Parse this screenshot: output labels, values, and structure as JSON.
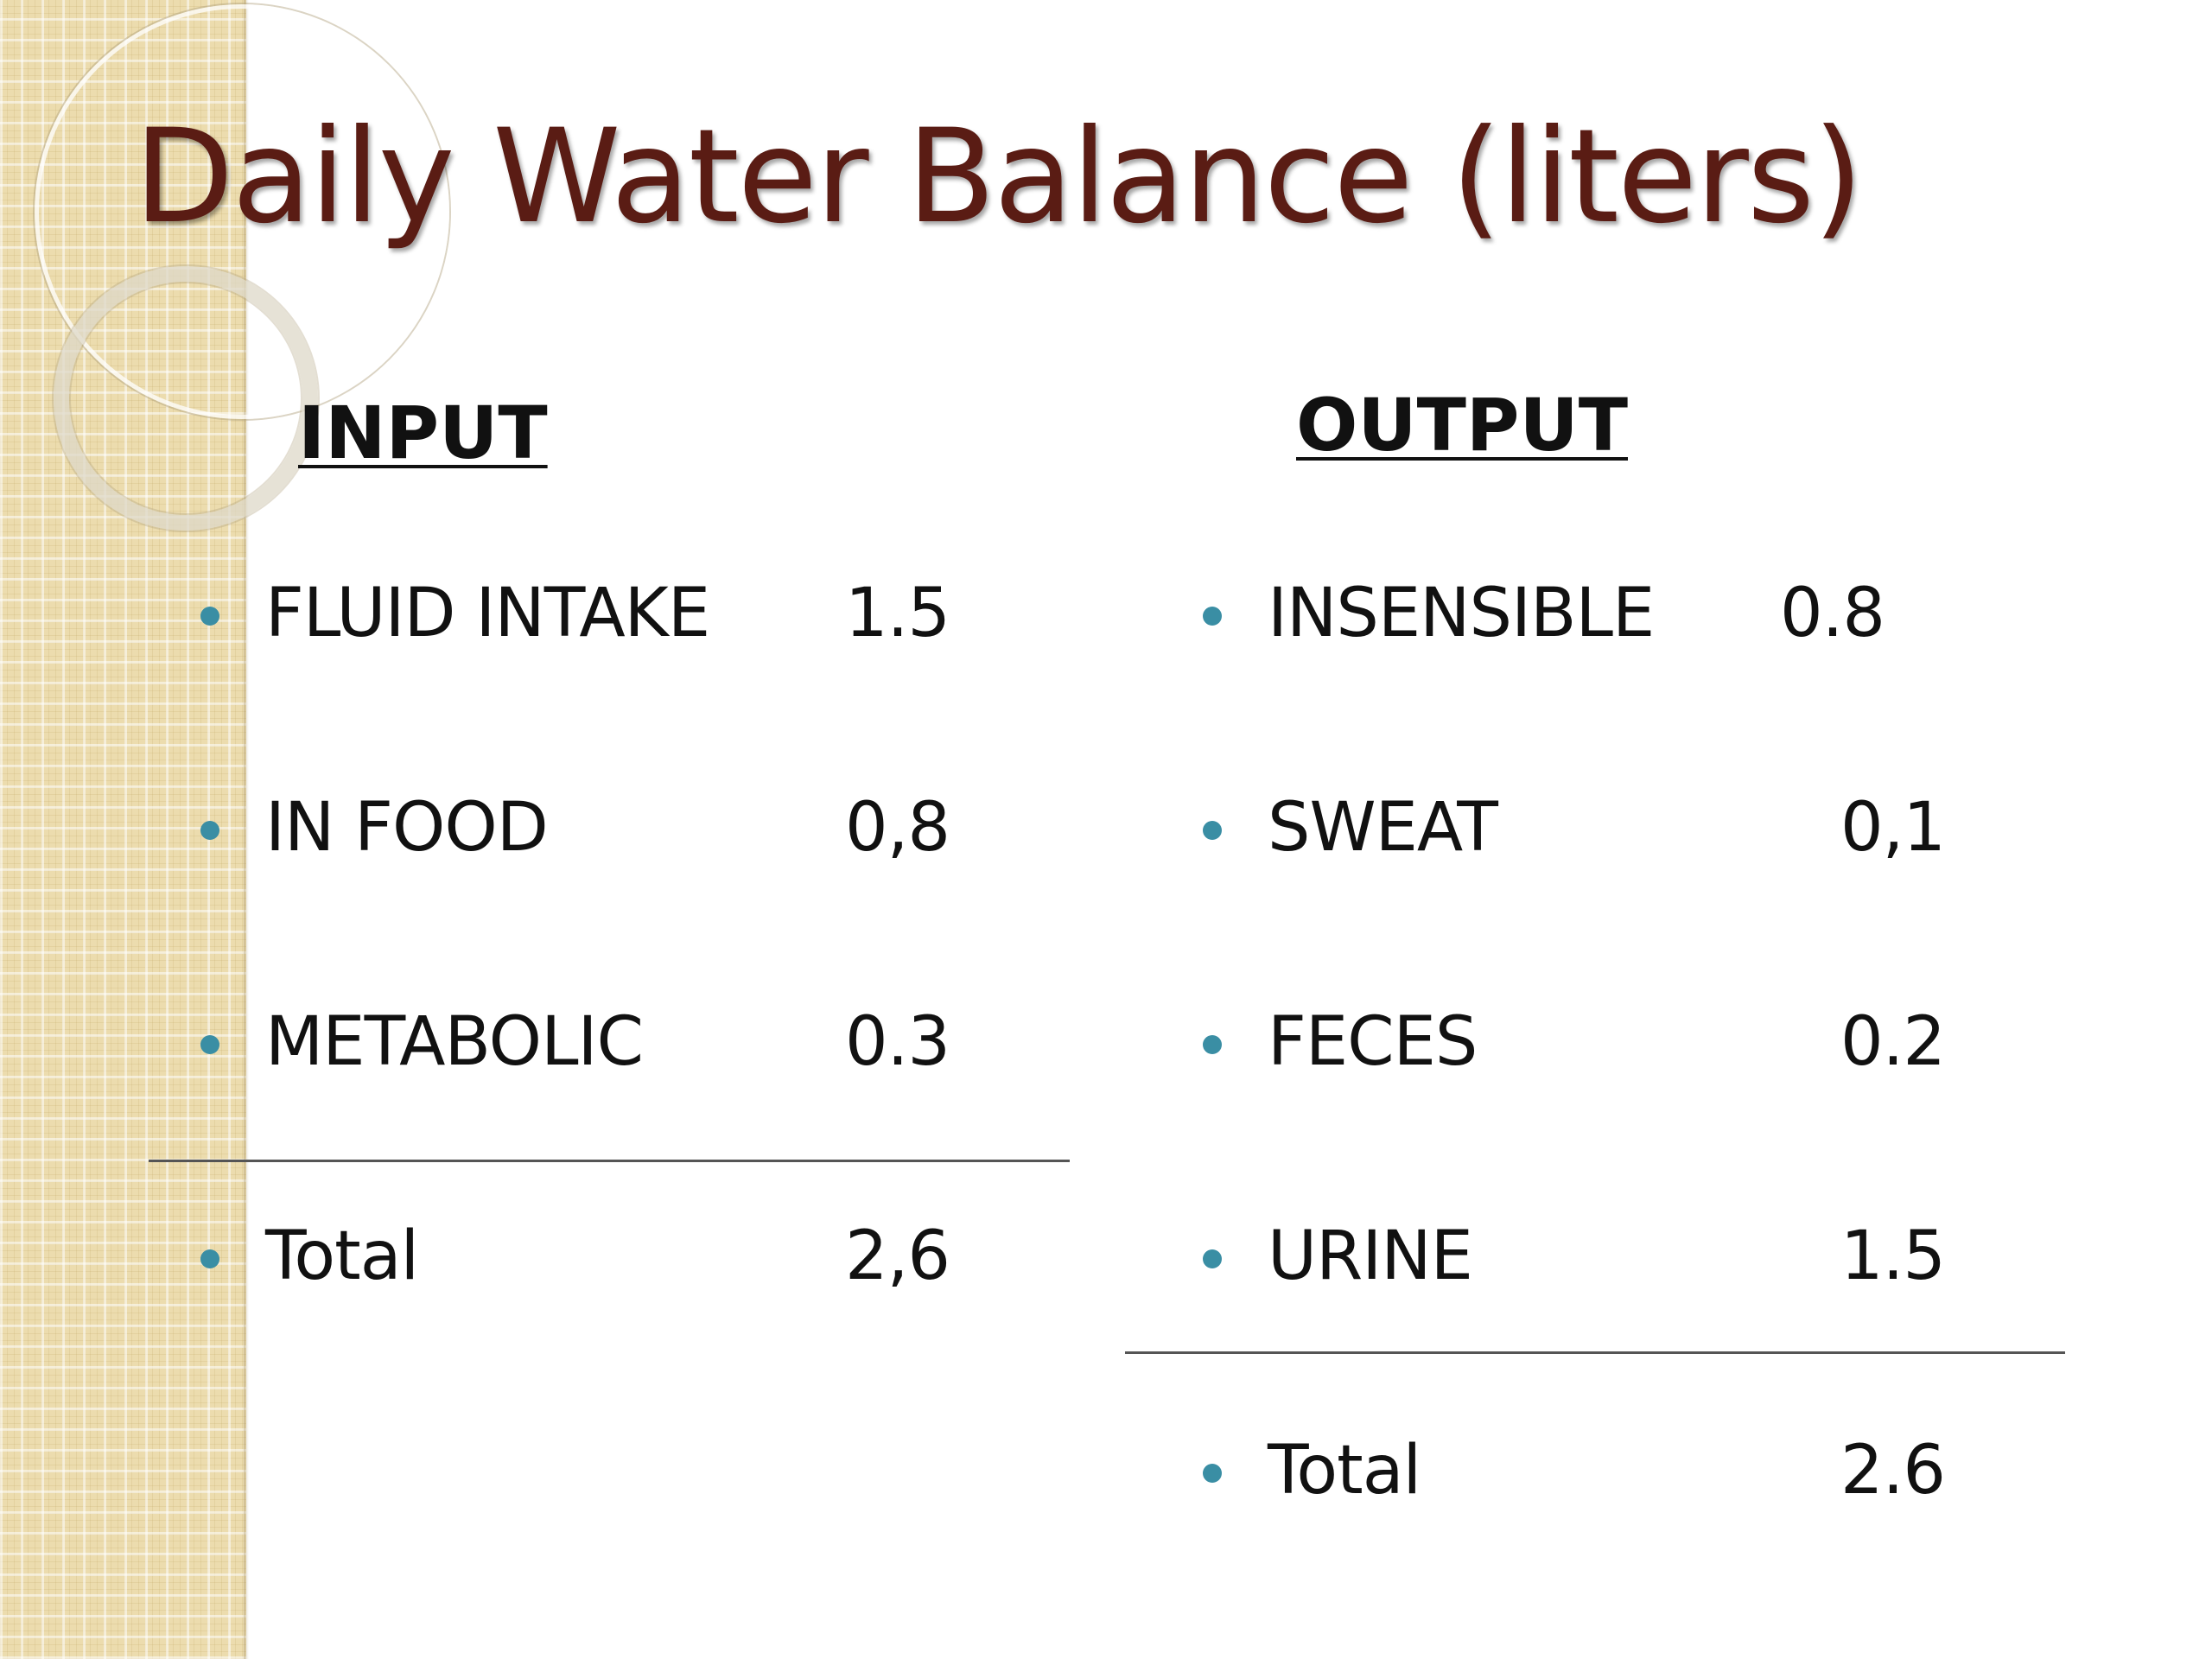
{
  "slide": {
    "title": "Daily Water Balance (liters)",
    "input": {
      "heading": "INPUT",
      "items": [
        {
          "label": "FLUID  INTAKE",
          "value": "1.5"
        },
        {
          "label": "IN FOOD",
          "value": "0,8"
        },
        {
          "label": "METABOLIC",
          "value": "0.3"
        }
      ],
      "total": {
        "label": "Total",
        "value": "2,6"
      }
    },
    "output": {
      "heading": "OUTPUT",
      "items": [
        {
          "label": "INSENSIBLE",
          "value": "0.8"
        },
        {
          "label": "SWEAT",
          "value": "0,1"
        },
        {
          "label": "FECES",
          "value": "0.2"
        },
        {
          "label": "URINE",
          "value": "1.5"
        }
      ],
      "total": {
        "label": "Total",
        "value": "2.6"
      }
    },
    "colors": {
      "title": "#5a1c14",
      "bullet": "#3a8ea4",
      "side_band": "#ecdcae"
    }
  }
}
